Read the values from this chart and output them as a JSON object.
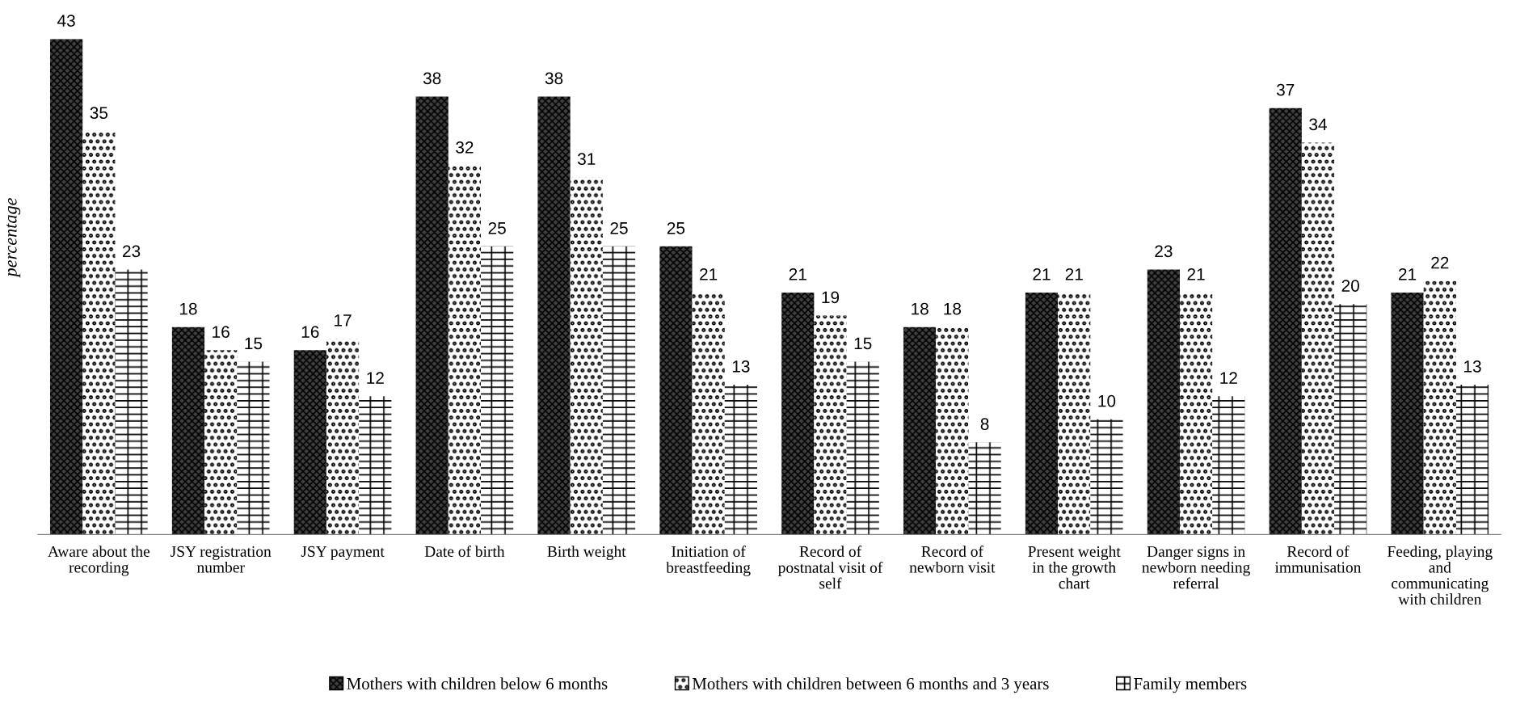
{
  "chart_data": {
    "type": "bar",
    "ylabel": "percentage",
    "data_labels": true,
    "legend": "bottom",
    "grid": false,
    "categories": [
      "Aware about the\nrecording",
      "JSY registration\nnumber",
      "JSY payment",
      "Date of birth",
      "Birth weight",
      "Initiation of\nbreastfeeding",
      "Record of\npostnatal visit of\nself",
      "Record of\nnewborn visit",
      "Present weight\nin the growth\nchart",
      "Danger signs in\nnewborn needing\nreferral",
      "Record of\nimmunisation",
      "Feeding, playing\nand\ncommunicating\nwith children"
    ],
    "series": [
      {
        "name": "Mothers with children below 6 months",
        "color": "#404040",
        "values": [
          43,
          18,
          16,
          38,
          38,
          25,
          21,
          18,
          21,
          23,
          37,
          21
        ]
      },
      {
        "name": "Mothers with children between 6 months and 3 years",
        "color": "#ffffff",
        "values": [
          35,
          16,
          17,
          32,
          31,
          21,
          19,
          18,
          21,
          21,
          34,
          22
        ]
      },
      {
        "name": "Family members",
        "color": "#ffffff",
        "values": [
          23,
          15,
          12,
          25,
          25,
          13,
          15,
          8,
          10,
          12,
          20,
          13
        ]
      }
    ]
  }
}
